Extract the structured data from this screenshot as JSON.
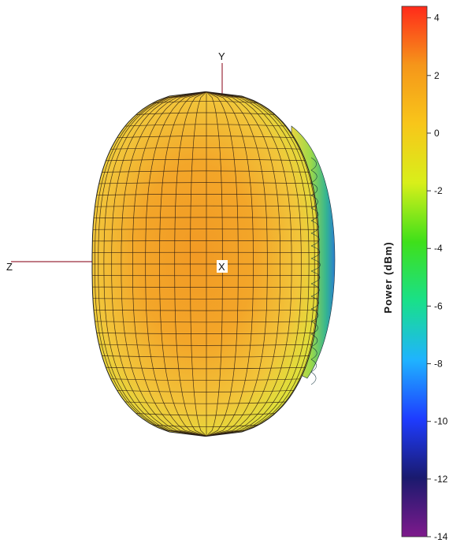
{
  "chart_data": {
    "type": "3d-surface",
    "axes": {
      "x": "X",
      "y": "Y",
      "z": "Z"
    },
    "colorbar": {
      "title": "Power (dBm)",
      "min": -14,
      "max": 4.4,
      "ticks": [
        {
          "value": 4,
          "label": "4"
        },
        {
          "value": 2,
          "label": "2"
        },
        {
          "value": 0,
          "label": "0"
        },
        {
          "value": -2,
          "label": "-2"
        },
        {
          "value": -4,
          "label": "-4"
        },
        {
          "value": -6,
          "label": "-6"
        },
        {
          "value": -8,
          "label": "-8"
        },
        {
          "value": -10,
          "label": "-10"
        },
        {
          "value": -12,
          "label": "-12"
        },
        {
          "value": -14,
          "label": "-14"
        }
      ],
      "colormap": [
        "#7e1a8c",
        "#1a1a6e",
        "#1e3cff",
        "#1fb3ff",
        "#19e08a",
        "#3fe01a",
        "#d8ef1a",
        "#f8c61a",
        "#f5961a",
        "#ff2a1a"
      ]
    },
    "surface": {
      "min_power_dbm": -9,
      "max_power_dbm": 2.8
    }
  }
}
